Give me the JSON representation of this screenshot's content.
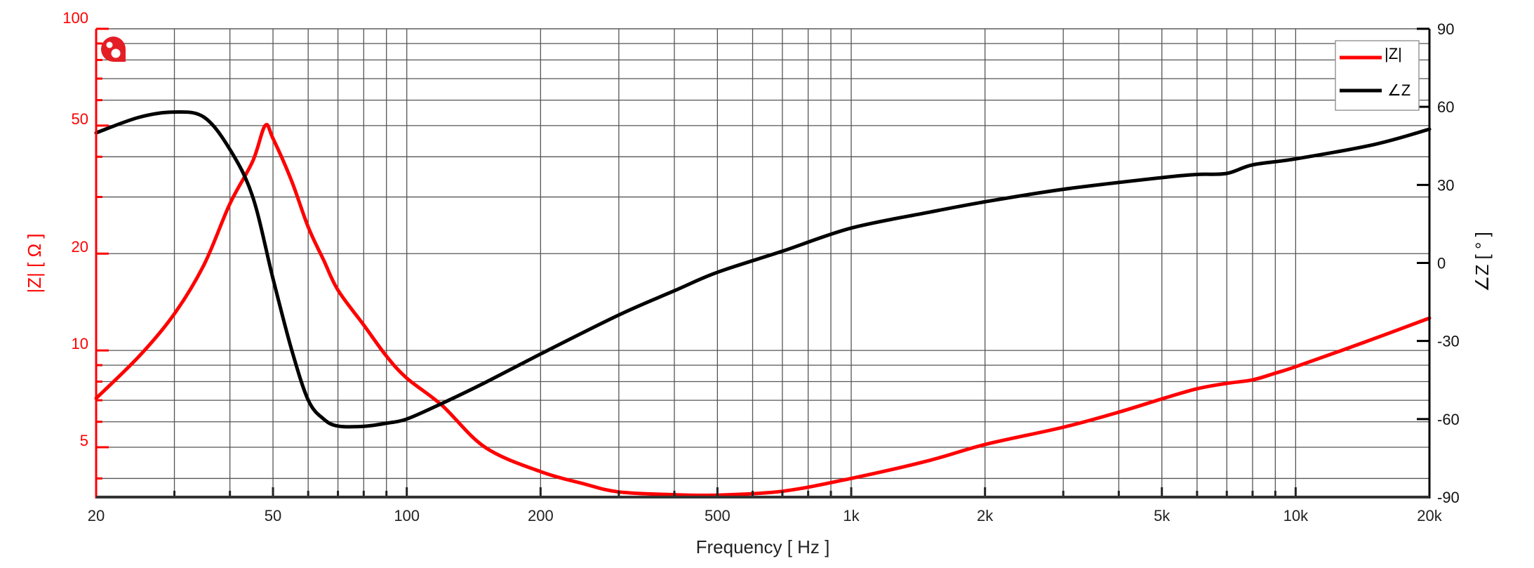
{
  "chart_data": {
    "type": "line",
    "title": "",
    "xlabel": "Frequency [ Hz ]",
    "ylabel_left": "|Z| [ Ω ]",
    "ylabel_right": "∠Z [ ° ]",
    "x_scale": "log",
    "xlim": [
      20,
      20000
    ],
    "ylim_left": [
      3.5,
      100
    ],
    "ylim_left_scale": "log",
    "ylim_right": [
      -90,
      90
    ],
    "grid": true,
    "legend_position": "top-right",
    "x_ticks": [
      {
        "value": 20,
        "label": "20"
      },
      {
        "value": 50,
        "label": "50"
      },
      {
        "value": 100,
        "label": "100"
      },
      {
        "value": 200,
        "label": "200"
      },
      {
        "value": 500,
        "label": "500"
      },
      {
        "value": 1000,
        "label": "1k"
      },
      {
        "value": 2000,
        "label": "2k"
      },
      {
        "value": 5000,
        "label": "5k"
      },
      {
        "value": 10000,
        "label": "10k"
      },
      {
        "value": 20000,
        "label": "20k"
      }
    ],
    "y_left_ticks": [
      {
        "value": 100,
        "label": "100"
      },
      {
        "value": 50,
        "label": "50"
      },
      {
        "value": 20,
        "label": "20"
      },
      {
        "value": 10,
        "label": "10"
      },
      {
        "value": 5,
        "label": "5"
      }
    ],
    "y_right_ticks": [
      {
        "value": 90,
        "label": "90"
      },
      {
        "value": 60,
        "label": "60"
      },
      {
        "value": 30,
        "label": "30"
      },
      {
        "value": 0,
        "label": "0"
      },
      {
        "value": -30,
        "label": "-30"
      },
      {
        "value": -60,
        "label": "-60"
      },
      {
        "value": -90,
        "label": "-90"
      }
    ],
    "series": [
      {
        "name": "|Z|",
        "axis": "left",
        "color": "#ff0000",
        "x": [
          20,
          25,
          30,
          35,
          40,
          45,
          48,
          50,
          55,
          60,
          65,
          70,
          80,
          90,
          100,
          120,
          150,
          200,
          250,
          300,
          400,
          500,
          700,
          1000,
          1500,
          2000,
          3000,
          4000,
          5000,
          6000,
          7000,
          8000,
          9000,
          10000,
          14000,
          20000
        ],
        "values": [
          7.1,
          9.6,
          13.0,
          18.5,
          28.6,
          38.7,
          50.0,
          45.6,
          33.8,
          24.2,
          19.1,
          15.4,
          12.0,
          9.6,
          8.2,
          6.75,
          5.0,
          4.2,
          3.85,
          3.63,
          3.56,
          3.55,
          3.65,
          4.0,
          4.55,
          5.1,
          5.77,
          6.43,
          7.07,
          7.6,
          7.9,
          8.1,
          8.5,
          8.9,
          10.5,
          12.6
        ]
      },
      {
        "name": "∠Z",
        "axis": "right",
        "color": "#000000",
        "x": [
          20,
          25,
          30,
          35,
          40,
          45,
          50,
          55,
          60,
          65,
          70,
          80,
          90,
          100,
          120,
          150,
          200,
          300,
          400,
          500,
          700,
          1000,
          1500,
          2000,
          3000,
          5000,
          6000,
          7000,
          8000,
          10000,
          15000,
          20000
        ],
        "values": [
          50,
          56,
          58,
          56,
          43.6,
          25.5,
          -6,
          -33,
          -52.7,
          -60,
          -62.7,
          -62.8,
          -61.6,
          -60,
          -54,
          -46,
          -35,
          -20,
          -10.7,
          -3.6,
          4.5,
          13.4,
          19.5,
          23.5,
          28.3,
          32.8,
          34,
          34.4,
          37.7,
          40,
          45.5,
          51.4
        ]
      }
    ]
  },
  "legend": {
    "items": [
      {
        "label": "|Z|",
        "color": "#ff0000"
      },
      {
        "label": "∠Z",
        "color": "#000000"
      }
    ]
  },
  "logo": {
    "icon": "brand-logo-icon",
    "color": "#e31e24"
  },
  "colors": {
    "impedance": "#ff0000",
    "phase": "#000000",
    "grid": "#555555"
  }
}
